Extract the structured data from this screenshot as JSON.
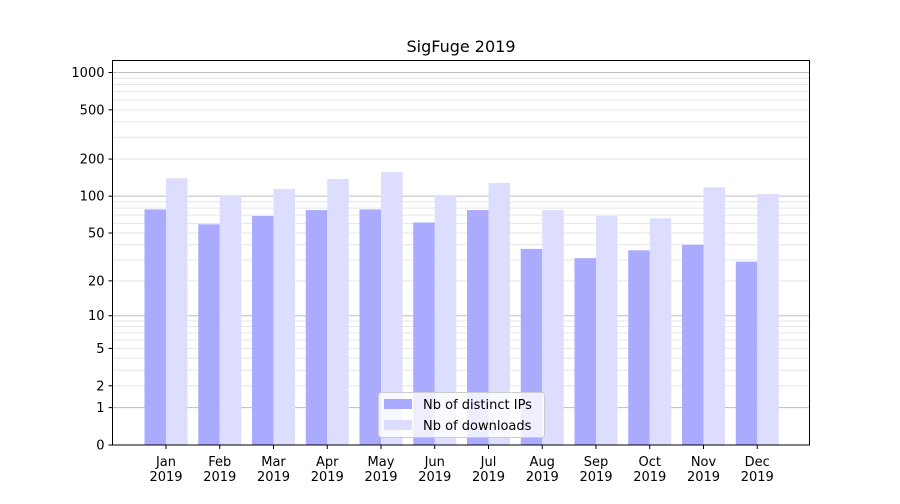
{
  "chart_data": {
    "type": "bar",
    "title": "SigFuge 2019",
    "xlabel": "",
    "ylabel": "",
    "yscale": "log10(y+1)",
    "ylim": [
      0,
      1250
    ],
    "grid": "horizontal, major and minor",
    "legend_placement": "bottom-center",
    "categories": [
      "Jan\n2019",
      "Feb\n2019",
      "Mar\n2019",
      "Apr\n2019",
      "May\n2019",
      "Jun\n2019",
      "Jul\n2019",
      "Aug\n2019",
      "Sep\n2019",
      "Oct\n2019",
      "Nov\n2019",
      "Dec\n2019"
    ],
    "category_labels": [
      [
        "Jan",
        "2019"
      ],
      [
        "Feb",
        "2019"
      ],
      [
        "Mar",
        "2019"
      ],
      [
        "Apr",
        "2019"
      ],
      [
        "May",
        "2019"
      ],
      [
        "Jun",
        "2019"
      ],
      [
        "Jul",
        "2019"
      ],
      [
        "Aug",
        "2019"
      ],
      [
        "Sep",
        "2019"
      ],
      [
        "Oct",
        "2019"
      ],
      [
        "Nov",
        "2019"
      ],
      [
        "Dec",
        "2019"
      ]
    ],
    "yticks": [
      0,
      1,
      2,
      5,
      10,
      20,
      50,
      100,
      200,
      500,
      1000
    ],
    "series": [
      {
        "name": "Nb of distinct IPs",
        "color": "#aaaaff",
        "values": [
          78,
          59,
          69,
          77,
          78,
          61,
          77,
          37,
          31,
          36,
          40,
          29
        ]
      },
      {
        "name": "Nb of downloads",
        "color": "#ddddff",
        "values": [
          140,
          102,
          114,
          138,
          157,
          102,
          128,
          77,
          69,
          66,
          118,
          104
        ]
      }
    ]
  }
}
